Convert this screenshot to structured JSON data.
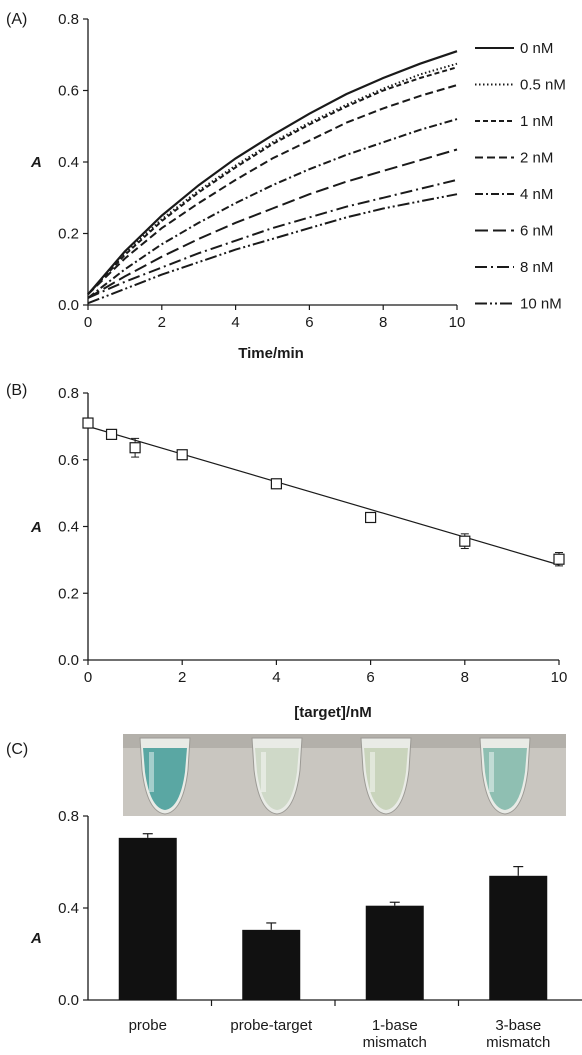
{
  "chart_data": [
    {
      "panel": "(A)",
      "type": "line",
      "xlabel": "Time/min",
      "ylabel": "A",
      "xlim": [
        0,
        10
      ],
      "ylim": [
        0,
        0.8
      ],
      "xticks": [
        "0",
        "2",
        "4",
        "6",
        "8",
        "10"
      ],
      "yticks": [
        "0.0",
        "0.2",
        "0.4",
        "0.6",
        "0.8"
      ],
      "legend": "right",
      "series": [
        {
          "name": "0 nM",
          "dash": "solid",
          "x": [
            0,
            1,
            2,
            3,
            4,
            5,
            6,
            7,
            8,
            9,
            10
          ],
          "y": [
            0.03,
            0.15,
            0.25,
            0.335,
            0.41,
            0.475,
            0.535,
            0.59,
            0.635,
            0.675,
            0.71
          ]
        },
        {
          "name": "0.5 nM",
          "dash": "dot",
          "x": [
            0,
            1,
            2,
            3,
            4,
            5,
            6,
            7,
            8,
            9,
            10
          ],
          "y": [
            0.03,
            0.145,
            0.24,
            0.32,
            0.39,
            0.455,
            0.51,
            0.56,
            0.605,
            0.645,
            0.675
          ]
        },
        {
          "name": "1 nM",
          "dash": "dash",
          "x": [
            0,
            1,
            2,
            3,
            4,
            5,
            6,
            7,
            8,
            9,
            10
          ],
          "y": [
            0.03,
            0.14,
            0.235,
            0.315,
            0.385,
            0.45,
            0.505,
            0.555,
            0.6,
            0.635,
            0.665
          ]
        },
        {
          "name": "2 nM",
          "dash": "longdash",
          "x": [
            0,
            1,
            2,
            3,
            4,
            5,
            6,
            7,
            8,
            9,
            10
          ],
          "y": [
            0.03,
            0.13,
            0.215,
            0.285,
            0.35,
            0.41,
            0.46,
            0.51,
            0.55,
            0.585,
            0.615
          ]
        },
        {
          "name": "4 nM",
          "dash": "dashdot",
          "x": [
            0,
            1,
            2,
            3,
            4,
            5,
            6,
            7,
            8,
            9,
            10
          ],
          "y": [
            0.02,
            0.1,
            0.17,
            0.23,
            0.285,
            0.335,
            0.38,
            0.42,
            0.455,
            0.49,
            0.52
          ]
        },
        {
          "name": "6 nM",
          "dash": "longerdash",
          "x": [
            0,
            1,
            2,
            3,
            4,
            5,
            6,
            7,
            8,
            9,
            10
          ],
          "y": [
            0.02,
            0.08,
            0.135,
            0.185,
            0.23,
            0.27,
            0.31,
            0.345,
            0.375,
            0.405,
            0.435
          ]
        },
        {
          "name": "8 nM",
          "dash": "longdashdot",
          "x": [
            0,
            1,
            2,
            3,
            4,
            5,
            6,
            7,
            8,
            9,
            10
          ],
          "y": [
            0.02,
            0.065,
            0.105,
            0.145,
            0.18,
            0.215,
            0.245,
            0.275,
            0.3,
            0.325,
            0.35
          ]
        },
        {
          "name": "10 nM",
          "dash": "longdashdotdot",
          "x": [
            0,
            1,
            2,
            3,
            4,
            5,
            6,
            7,
            8,
            9,
            10
          ],
          "y": [
            0.005,
            0.045,
            0.085,
            0.12,
            0.155,
            0.185,
            0.215,
            0.245,
            0.27,
            0.29,
            0.31
          ]
        }
      ]
    },
    {
      "panel": "(B)",
      "type": "scatter",
      "xlabel": "[target]/nM",
      "ylabel": "A",
      "xlim": [
        0,
        10
      ],
      "ylim": [
        0,
        0.8
      ],
      "xticks": [
        "0",
        "2",
        "4",
        "6",
        "8",
        "10"
      ],
      "yticks": [
        "0.0",
        "0.2",
        "0.4",
        "0.6",
        "0.8"
      ],
      "points": [
        {
          "x": 0,
          "y": 0.71,
          "err": 0.015
        },
        {
          "x": 0.5,
          "y": 0.676,
          "err": 0.012
        },
        {
          "x": 1,
          "y": 0.636,
          "err": 0.028
        },
        {
          "x": 2,
          "y": 0.615,
          "err": 0.012
        },
        {
          "x": 4,
          "y": 0.528,
          "err": 0.014
        },
        {
          "x": 6,
          "y": 0.427,
          "err": 0.008
        },
        {
          "x": 8,
          "y": 0.356,
          "err": 0.022
        },
        {
          "x": 10,
          "y": 0.302,
          "err": 0.02
        }
      ],
      "fit": {
        "x": [
          0,
          10
        ],
        "y": [
          0.7,
          0.285
        ]
      }
    },
    {
      "panel": "(C)",
      "type": "bar",
      "ylabel": "A",
      "ylim": [
        0,
        0.8
      ],
      "yticks": [
        "0.0",
        "0.4",
        "0.8"
      ],
      "categories": [
        [
          "probe"
        ],
        [
          "probe-target"
        ],
        [
          "1-base",
          "mismatch"
        ],
        [
          "3-base",
          "mismatch"
        ]
      ],
      "values": [
        0.705,
        0.305,
        0.41,
        0.54
      ],
      "errors": [
        0.018,
        0.03,
        0.015,
        0.04
      ],
      "bar_color": "#111111",
      "photo_tube_colors": [
        "#5aa7a3",
        "#cfd9c8",
        "#c9d4bc",
        "#8fbfb2"
      ]
    }
  ]
}
